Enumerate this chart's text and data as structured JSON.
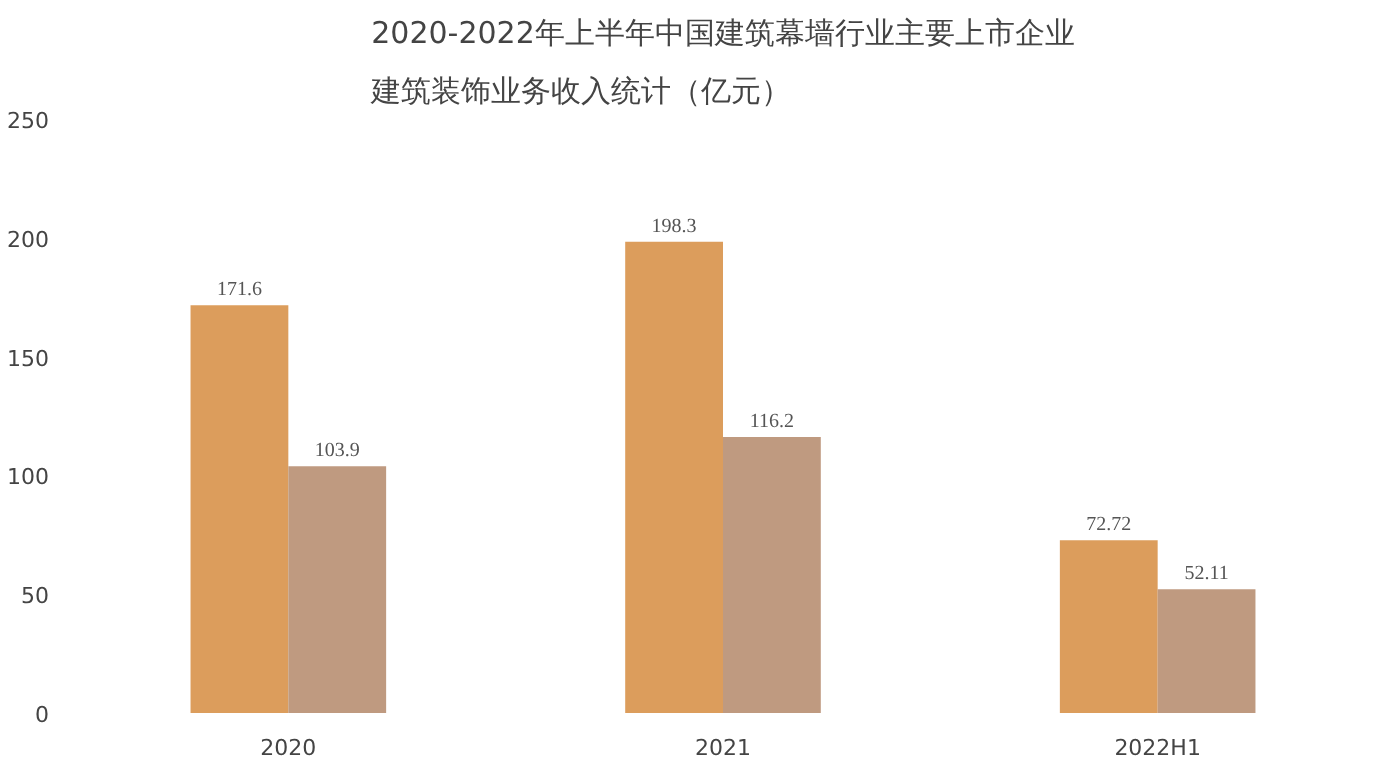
{
  "chart_data": {
    "type": "bar",
    "title": "2020-2022年上半年中国建筑幕墙行业主要上市企业建筑装饰业务收入统计（亿元）",
    "categories": [
      "2020",
      "2021",
      "2022H1"
    ],
    "series": [
      {
        "color": "#d8924a",
        "values": [
          171.6,
          198.3,
          72.72
        ]
      },
      {
        "color": "#b88f72",
        "values": [
          103.9,
          116.2,
          52.11
        ]
      }
    ],
    "ylim": [
      0,
      250
    ],
    "yticks": [
      0,
      50,
      100,
      150,
      200,
      250
    ],
    "grid": false,
    "data_labels": true
  }
}
